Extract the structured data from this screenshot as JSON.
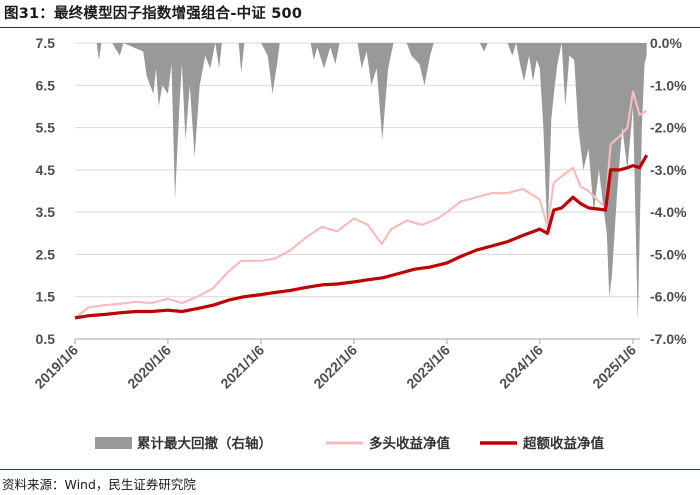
{
  "title": "图31：最终模型因子指数增强组合-中证 500",
  "source": "资料来源：Wind，民生证券研究院",
  "chart_data": {
    "type": "line",
    "x_ticks": [
      "2019/1/6",
      "2020/1/6",
      "2021/1/6",
      "2022/1/6",
      "2023/1/6",
      "2024/1/6",
      "2025/1/6"
    ],
    "y_left": {
      "range": [
        0.5,
        7.5
      ],
      "ticks": [
        "0.5",
        "1.5",
        "2.5",
        "3.5",
        "4.5",
        "5.5",
        "6.5",
        "7.5"
      ]
    },
    "y_right": {
      "range": [
        -7.0,
        0.0
      ],
      "ticks": [
        "0.0%",
        "-1.0%",
        "-2.0%",
        "-3.0%",
        "-4.0%",
        "-5.0%",
        "-6.0%",
        "-7.0%"
      ]
    },
    "legend": [
      "累计最大回撤（右轴）",
      "多头收益净值",
      "超额收益净值"
    ],
    "colors": {
      "drawdown": "#999999",
      "long": "#f7bcbc",
      "excess": "#c00000"
    },
    "series": [
      {
        "name": "多头收益净值",
        "axis": "left",
        "points": [
          [
            "2019-01-06",
            1.0
          ],
          [
            "2019-03-01",
            1.25
          ],
          [
            "2019-05-01",
            1.3
          ],
          [
            "2019-07-01",
            1.33
          ],
          [
            "2019-09-01",
            1.38
          ],
          [
            "2019-11-01",
            1.35
          ],
          [
            "2020-01-06",
            1.45
          ],
          [
            "2020-03-01",
            1.35
          ],
          [
            "2020-05-01",
            1.5
          ],
          [
            "2020-07-01",
            1.7
          ],
          [
            "2020-09-01",
            2.1
          ],
          [
            "2020-10-20",
            2.35
          ],
          [
            "2021-01-06",
            2.35
          ],
          [
            "2021-03-01",
            2.4
          ],
          [
            "2021-05-01",
            2.6
          ],
          [
            "2021-07-01",
            2.9
          ],
          [
            "2021-09-01",
            3.15
          ],
          [
            "2021-11-01",
            3.05
          ],
          [
            "2022-01-06",
            3.35
          ],
          [
            "2022-03-01",
            3.2
          ],
          [
            "2022-04-25",
            2.75
          ],
          [
            "2022-06-01",
            3.1
          ],
          [
            "2022-08-01",
            3.3
          ],
          [
            "2022-10-01",
            3.2
          ],
          [
            "2022-12-01",
            3.35
          ],
          [
            "2023-01-06",
            3.5
          ],
          [
            "2023-03-01",
            3.75
          ],
          [
            "2023-05-01",
            3.85
          ],
          [
            "2023-07-01",
            3.95
          ],
          [
            "2023-09-01",
            3.95
          ],
          [
            "2023-11-01",
            4.05
          ],
          [
            "2024-01-06",
            3.8
          ],
          [
            "2024-02-05",
            3.15
          ],
          [
            "2024-03-01",
            4.2
          ],
          [
            "2024-04-01",
            4.35
          ],
          [
            "2024-05-15",
            4.55
          ],
          [
            "2024-06-15",
            4.1
          ],
          [
            "2024-07-15",
            4.0
          ],
          [
            "2024-09-20",
            3.6
          ],
          [
            "2024-10-10",
            5.1
          ],
          [
            "2024-11-15",
            5.3
          ],
          [
            "2024-12-15",
            5.5
          ],
          [
            "2025-01-06",
            6.35
          ],
          [
            "2025-02-01",
            5.8
          ],
          [
            "2025-03-01",
            5.9
          ]
        ]
      },
      {
        "name": "超额收益净值",
        "axis": "left",
        "points": [
          [
            "2019-01-06",
            1.0
          ],
          [
            "2019-03-01",
            1.05
          ],
          [
            "2019-05-01",
            1.08
          ],
          [
            "2019-07-01",
            1.12
          ],
          [
            "2019-09-01",
            1.15
          ],
          [
            "2019-11-01",
            1.15
          ],
          [
            "2020-01-06",
            1.18
          ],
          [
            "2020-03-01",
            1.15
          ],
          [
            "2020-05-01",
            1.22
          ],
          [
            "2020-07-01",
            1.3
          ],
          [
            "2020-09-01",
            1.42
          ],
          [
            "2020-11-01",
            1.5
          ],
          [
            "2021-01-06",
            1.55
          ],
          [
            "2021-03-01",
            1.6
          ],
          [
            "2021-05-01",
            1.65
          ],
          [
            "2021-07-01",
            1.72
          ],
          [
            "2021-09-01",
            1.78
          ],
          [
            "2021-11-01",
            1.8
          ],
          [
            "2022-01-06",
            1.85
          ],
          [
            "2022-03-01",
            1.9
          ],
          [
            "2022-05-01",
            1.95
          ],
          [
            "2022-07-01",
            2.05
          ],
          [
            "2022-09-01",
            2.15
          ],
          [
            "2022-11-01",
            2.2
          ],
          [
            "2023-01-06",
            2.3
          ],
          [
            "2023-03-01",
            2.45
          ],
          [
            "2023-05-01",
            2.6
          ],
          [
            "2023-07-01",
            2.7
          ],
          [
            "2023-09-01",
            2.8
          ],
          [
            "2023-11-01",
            2.95
          ],
          [
            "2024-01-06",
            3.1
          ],
          [
            "2024-02-05",
            3.0
          ],
          [
            "2024-03-01",
            3.55
          ],
          [
            "2024-04-01",
            3.6
          ],
          [
            "2024-05-15",
            3.85
          ],
          [
            "2024-06-15",
            3.7
          ],
          [
            "2024-07-15",
            3.6
          ],
          [
            "2024-09-20",
            3.55
          ],
          [
            "2024-10-10",
            4.5
          ],
          [
            "2024-11-15",
            4.5
          ],
          [
            "2024-12-15",
            4.55
          ],
          [
            "2025-01-06",
            4.6
          ],
          [
            "2025-02-01",
            4.55
          ],
          [
            "2025-03-01",
            4.85
          ]
        ]
      },
      {
        "name": "累计最大回撤（右轴）",
        "axis": "right",
        "style": "area",
        "points": [
          [
            "2019-01-06",
            0.0
          ],
          [
            "2019-03-01",
            0.0
          ],
          [
            "2019-04-01",
            0.0
          ],
          [
            "2019-04-10",
            -0.4
          ],
          [
            "2019-04-20",
            0.0
          ],
          [
            "2019-06-01",
            0.0
          ],
          [
            "2019-07-01",
            -0.3
          ],
          [
            "2019-07-15",
            0.0
          ],
          [
            "2019-10-01",
            -0.2
          ],
          [
            "2019-10-15",
            -0.8
          ],
          [
            "2019-11-10",
            -1.2
          ],
          [
            "2019-11-20",
            -0.6
          ],
          [
            "2019-12-01",
            -1.5
          ],
          [
            "2019-12-15",
            -1.0
          ],
          [
            "2020-01-06",
            -1.2
          ],
          [
            "2020-01-20",
            -0.5
          ],
          [
            "2020-02-03",
            -3.7
          ],
          [
            "2020-02-20",
            -1.5
          ],
          [
            "2020-03-01",
            -0.5
          ],
          [
            "2020-03-15",
            -2.3
          ],
          [
            "2020-04-01",
            -1.0
          ],
          [
            "2020-04-20",
            -2.7
          ],
          [
            "2020-05-10",
            -1.0
          ],
          [
            "2020-06-01",
            -0.3
          ],
          [
            "2020-06-20",
            -0.6
          ],
          [
            "2020-07-10",
            0.0
          ],
          [
            "2020-07-25",
            -0.6
          ],
          [
            "2020-08-05",
            0.0
          ],
          [
            "2020-10-10",
            0.0
          ],
          [
            "2020-10-20",
            -0.7
          ],
          [
            "2020-11-01",
            0.0
          ],
          [
            "2021-01-06",
            0.0
          ],
          [
            "2021-02-01",
            -0.3
          ],
          [
            "2021-02-20",
            -1.2
          ],
          [
            "2021-03-10",
            -0.5
          ],
          [
            "2021-03-20",
            0.0
          ],
          [
            "2021-07-20",
            0.0
          ],
          [
            "2021-08-01",
            -0.4
          ],
          [
            "2021-08-15",
            -0.1
          ],
          [
            "2021-09-10",
            -0.6
          ],
          [
            "2021-10-05",
            -0.1
          ],
          [
            "2021-10-25",
            -0.5
          ],
          [
            "2021-11-10",
            0.0
          ],
          [
            "2022-01-20",
            0.0
          ],
          [
            "2022-02-05",
            -0.6
          ],
          [
            "2022-02-25",
            -0.2
          ],
          [
            "2022-03-15",
            -1.0
          ],
          [
            "2022-04-05",
            -0.6
          ],
          [
            "2022-04-27",
            -2.3
          ],
          [
            "2022-05-20",
            -0.6
          ],
          [
            "2022-06-10",
            0.0
          ],
          [
            "2022-08-01",
            0.0
          ],
          [
            "2022-08-20",
            -0.3
          ],
          [
            "2022-09-20",
            -0.5
          ],
          [
            "2022-10-10",
            -1.0
          ],
          [
            "2022-11-01",
            -0.3
          ],
          [
            "2022-11-15",
            0.0
          ],
          [
            "2023-05-15",
            0.0
          ],
          [
            "2023-06-01",
            -0.2
          ],
          [
            "2023-06-15",
            0.0
          ],
          [
            "2023-09-01",
            0.0
          ],
          [
            "2023-09-20",
            -0.3
          ],
          [
            "2023-10-05",
            0.0
          ],
          [
            "2023-10-20",
            -0.5
          ],
          [
            "2023-11-05",
            -0.9
          ],
          [
            "2023-11-25",
            -0.3
          ],
          [
            "2023-12-10",
            -0.9
          ],
          [
            "2023-12-25",
            -0.4
          ],
          [
            "2024-01-06",
            -0.6
          ],
          [
            "2024-01-20",
            -2.0
          ],
          [
            "2024-02-05",
            -4.6
          ],
          [
            "2024-02-20",
            -1.8
          ],
          [
            "2024-03-05",
            -1.0
          ],
          [
            "2024-03-15",
            -0.5
          ],
          [
            "2024-04-01",
            0.0
          ],
          [
            "2024-04-15",
            -1.5
          ],
          [
            "2024-05-01",
            -0.3
          ],
          [
            "2024-05-20",
            -0.4
          ],
          [
            "2024-06-05",
            -2.0
          ],
          [
            "2024-06-25",
            -3.0
          ],
          [
            "2024-07-15",
            -2.5
          ],
          [
            "2024-08-05",
            -4.0
          ],
          [
            "2024-08-25",
            -3.0
          ],
          [
            "2024-09-10",
            -3.8
          ],
          [
            "2024-09-25",
            -4.5
          ],
          [
            "2024-10-05",
            -6.0
          ],
          [
            "2024-10-15",
            -5.5
          ],
          [
            "2024-11-05",
            -3.5
          ],
          [
            "2024-11-25",
            -2.0
          ],
          [
            "2024-12-15",
            -3.0
          ],
          [
            "2025-01-06",
            -1.5
          ],
          [
            "2025-01-25",
            -6.6
          ],
          [
            "2025-02-10",
            -2.0
          ],
          [
            "2025-02-20",
            -0.5
          ],
          [
            "2025-03-01",
            -0.3
          ]
        ]
      }
    ]
  }
}
